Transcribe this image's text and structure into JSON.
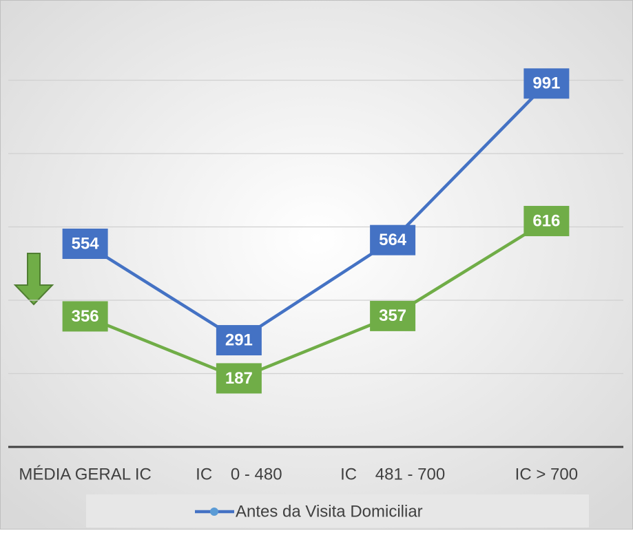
{
  "chart_data": {
    "type": "line",
    "categories": [
      "MÉDIA GERAL IC",
      "IC    0 - 480",
      "IC    481 - 700",
      "IC > 700"
    ],
    "series": [
      {
        "name": "Antes da Visita Domiciliar",
        "color": "#4472c4",
        "values": [
          554,
          291,
          564,
          991
        ]
      },
      {
        "color": "#70ad47",
        "values": [
          356,
          187,
          357,
          616
        ]
      }
    ],
    "ylim": [
      0,
      1200
    ],
    "yticks": [
      0,
      200,
      400,
      600,
      800,
      1000
    ],
    "grid": true,
    "legend": "bottom"
  }
}
